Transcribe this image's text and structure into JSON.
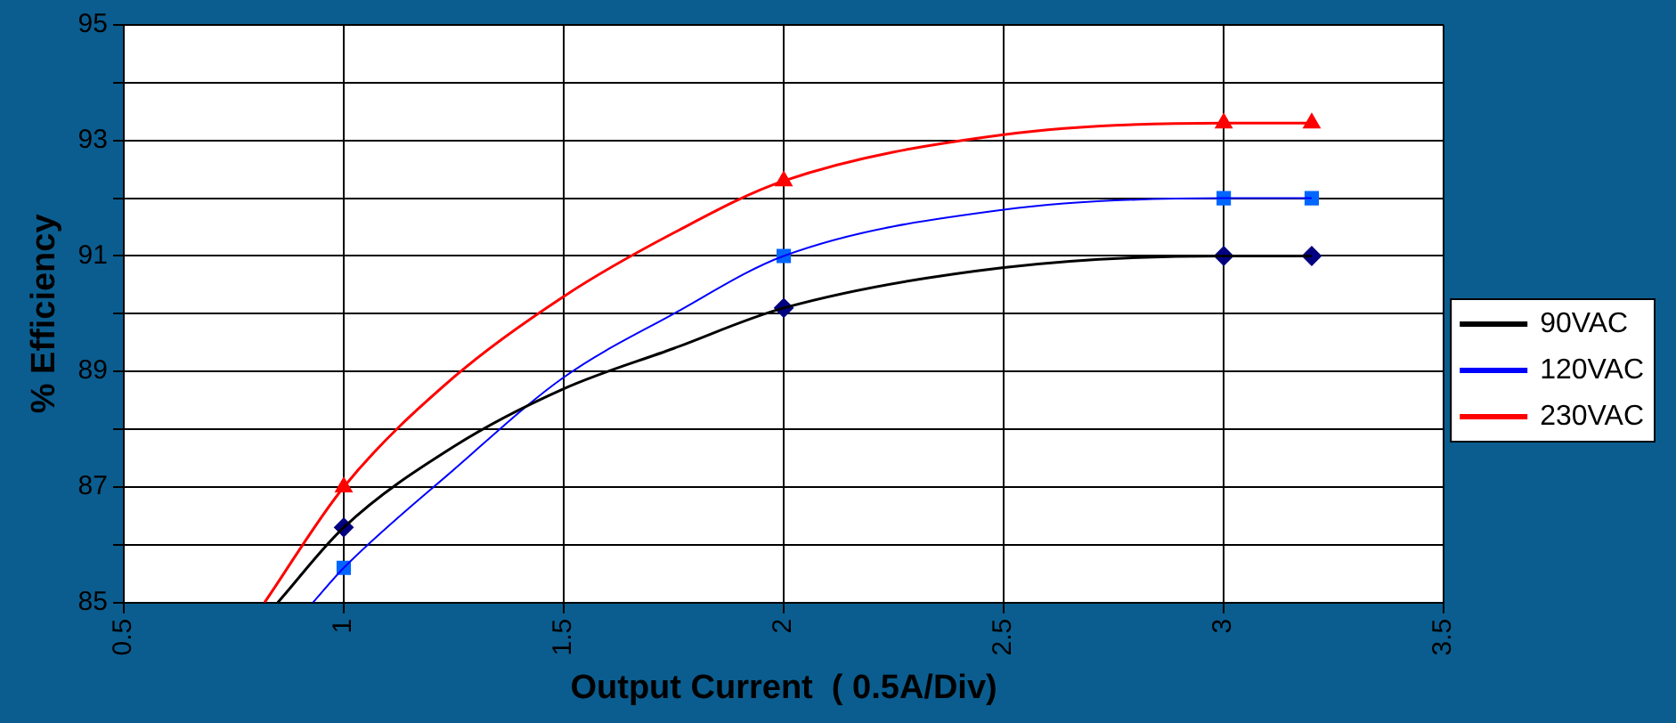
{
  "chart_data": {
    "type": "line",
    "xlabel": "Output Current  ( 0.5A/Div)",
    "ylabel": "% Efficiency",
    "xlim": [
      0.5,
      3.5
    ],
    "xticks": [
      0.5,
      1,
      1.5,
      2,
      2.5,
      3,
      3.5
    ],
    "ylim": [
      85,
      95
    ],
    "yticks": [
      85,
      {
        "value": 86,
        "label": null
      },
      87,
      {
        "value": 88,
        "label": null
      },
      89,
      {
        "value": 90,
        "label": null
      },
      91,
      {
        "value": 92,
        "label": null
      },
      93,
      {
        "value": 94,
        "label": null
      },
      95
    ],
    "grid": true,
    "legend": "right",
    "series": [
      {
        "name": "90VAC",
        "type": "line",
        "marker": "none",
        "color": "#000000",
        "x": [
          0.85,
          1,
          1.25,
          1.5,
          1.75,
          2,
          2.5,
          3,
          3.2
        ],
        "values": [
          85,
          86.3,
          87.7,
          88.7,
          89.4,
          90.1,
          90.8,
          91,
          91
        ]
      },
      {
        "name": "120VAC",
        "type": "line",
        "marker": "none",
        "color": "#0000ff",
        "x": [
          0.93,
          1,
          1.25,
          1.5,
          1.75,
          2,
          2.5,
          3,
          3.2
        ],
        "values": [
          85,
          85.6,
          87.3,
          88.9,
          90.0,
          91,
          91.8,
          92,
          92
        ]
      },
      {
        "name": "230VAC",
        "type": "line",
        "marker": "none",
        "color": "#ff0000",
        "x": [
          0.82,
          1,
          1.25,
          1.5,
          1.75,
          2,
          2.5,
          3,
          3.2
        ],
        "values": [
          85,
          87,
          88.9,
          90.3,
          91.4,
          92.3,
          93.1,
          93.3,
          93.3
        ]
      },
      {
        "type": "scatter",
        "marker": "diamond",
        "color": "#000080",
        "x": [
          1,
          2,
          3,
          3.2
        ],
        "values": [
          86.3,
          90.1,
          91,
          91
        ]
      },
      {
        "type": "scatter",
        "marker": "square",
        "color": "#0066ff",
        "x": [
          1,
          2,
          3,
          3.2
        ],
        "values": [
          85.6,
          91,
          92,
          92
        ]
      },
      {
        "type": "scatter",
        "marker": "triangle",
        "color": "#ff0000",
        "x": [
          1,
          2,
          3,
          3.2
        ],
        "values": [
          87,
          92.3,
          93.3,
          93.3
        ]
      }
    ]
  }
}
